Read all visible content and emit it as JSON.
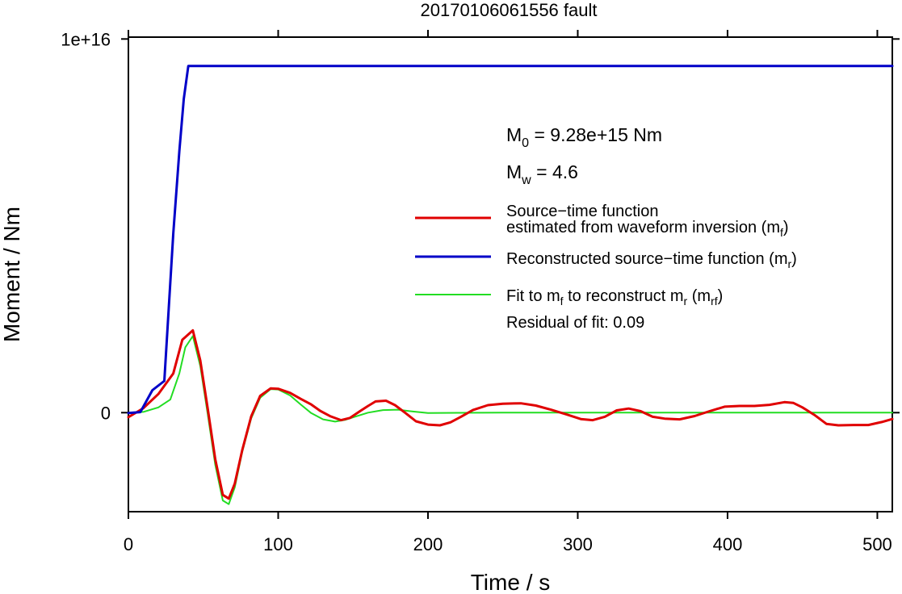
{
  "chart_data": {
    "type": "line",
    "title": "20170106061556 fault",
    "xlabel": "Time / s",
    "ylabel": "Moment / Nm",
    "xlim": [
      0,
      510
    ],
    "ylim": [
      -2650000000000000.0,
      1.005e+16
    ],
    "x_ticks": [
      0,
      100,
      200,
      300,
      400,
      500
    ],
    "x_tick_labels": [
      "0",
      "100",
      "200",
      "300",
      "400",
      "500"
    ],
    "y_ticks": [
      0,
      1e+16
    ],
    "y_tick_labels": [
      "0",
      "1e+16"
    ],
    "grid": false,
    "legend_position": "right",
    "annotations": {
      "m0_text": "M0 = 9.28e+15 Nm",
      "mw_text": "Mw = 4.6",
      "residual_text": "Residual of fit: 0.09"
    },
    "series": [
      {
        "name": "Source−time function estimated from waveform inversion (mf)",
        "color": "#e00000",
        "x": [
          0,
          10,
          20,
          30,
          36,
          43,
          48,
          53,
          58,
          63,
          67,
          71,
          76,
          82,
          88,
          95,
          100,
          108,
          115,
          122,
          128,
          135,
          142,
          148,
          155,
          160,
          165,
          172,
          178,
          185,
          192,
          200,
          208,
          215,
          222,
          230,
          240,
          250,
          262,
          272,
          282,
          292,
          302,
          310,
          318,
          326,
          334,
          342,
          350,
          358,
          368,
          378,
          388,
          398,
          408,
          418,
          428,
          438,
          444,
          450,
          458,
          466,
          474,
          484,
          494,
          503,
          510
        ],
        "y": [
          -120000000000000.0,
          120000000000000.0,
          500000000000000.0,
          1050000000000000.0,
          1950000000000000.0,
          2200000000000000.0,
          1400000000000000.0,
          100000000000000.0,
          -1250000000000000.0,
          -2200000000000000.0,
          -2300000000000000.0,
          -1900000000000000.0,
          -1000000000000000.0,
          -100000000000000.0,
          450000000000000.0,
          650000000000000.0,
          640000000000000.0,
          530000000000000.0,
          370000000000000.0,
          220000000000000.0,
          50000000000000.0,
          -100000000000000.0,
          -200000000000000.0,
          -140000000000000.0,
          50000000000000.0,
          180000000000000.0,
          300000000000000.0,
          320000000000000.0,
          200000000000000.0,
          -10000000000000.0,
          -230000000000000.0,
          -320000000000000.0,
          -340000000000000.0,
          -260000000000000.0,
          -110000000000000.0,
          70000000000000.0,
          200000000000000.0,
          240000000000000.0,
          250000000000000.0,
          190000000000000.0,
          80000000000000.0,
          -40000000000000.0,
          -170000000000000.0,
          -200000000000000.0,
          -110000000000000.0,
          60000000000000.0,
          110000000000000.0,
          40000000000000.0,
          -110000000000000.0,
          -160000000000000.0,
          -180000000000000.0,
          -90000000000000.0,
          40000000000000.0,
          160000000000000.0,
          180000000000000.0,
          180000000000000.0,
          210000000000000.0,
          280000000000000.0,
          260000000000000.0,
          140000000000000.0,
          -60000000000000.0,
          -300000000000000.0,
          -340000000000000.0,
          -330000000000000.0,
          -330000000000000.0,
          -250000000000000.0,
          -170000000000000.0
        ]
      },
      {
        "name": "Reconstructed source−time function (mr)",
        "color": "#0000c8",
        "x": [
          0,
          8,
          16,
          24,
          30,
          34,
          37,
          40,
          42,
          510
        ],
        "y": [
          -10000000000000.0,
          15000000000000.0,
          600000000000000.0,
          850000000000000.0,
          4800000000000000.0,
          7000000000000000.0,
          8400000000000000.0,
          9280000000000000.0,
          9280000000000000.0,
          9280000000000000.0
        ]
      },
      {
        "name": "Fit to mf to reconstruct mr (mrf)",
        "color": "#22dd22",
        "x": [
          0,
          10,
          20,
          28,
          34,
          38,
          43,
          48,
          53,
          58,
          63,
          67,
          71,
          76,
          82,
          88,
          95,
          100,
          108,
          115,
          122,
          130,
          138,
          145,
          152,
          160,
          170,
          180,
          190,
          200,
          220,
          250,
          300,
          350,
          400,
          450,
          510
        ],
        "y": [
          0,
          20000000000000.0,
          140000000000000.0,
          350000000000000.0,
          1050000000000000.0,
          1750000000000000.0,
          2050000000000000.0,
          1250000000000000.0,
          -50000000000000.0,
          -1400000000000000.0,
          -2350000000000000.0,
          -2450000000000000.0,
          -2000000000000000.0,
          -1050000000000000.0,
          -150000000000000.0,
          400000000000000.0,
          630000000000000.0,
          620000000000000.0,
          460000000000000.0,
          220000000000000.0,
          -10000000000000.0,
          -180000000000000.0,
          -240000000000000.0,
          -190000000000000.0,
          -100000000000000.0,
          0,
          70000000000000.0,
          80000000000000.0,
          30000000000000.0,
          -10000000000000.0,
          -5000000000000.0,
          0,
          0,
          0,
          0,
          0,
          0
        ]
      }
    ]
  }
}
